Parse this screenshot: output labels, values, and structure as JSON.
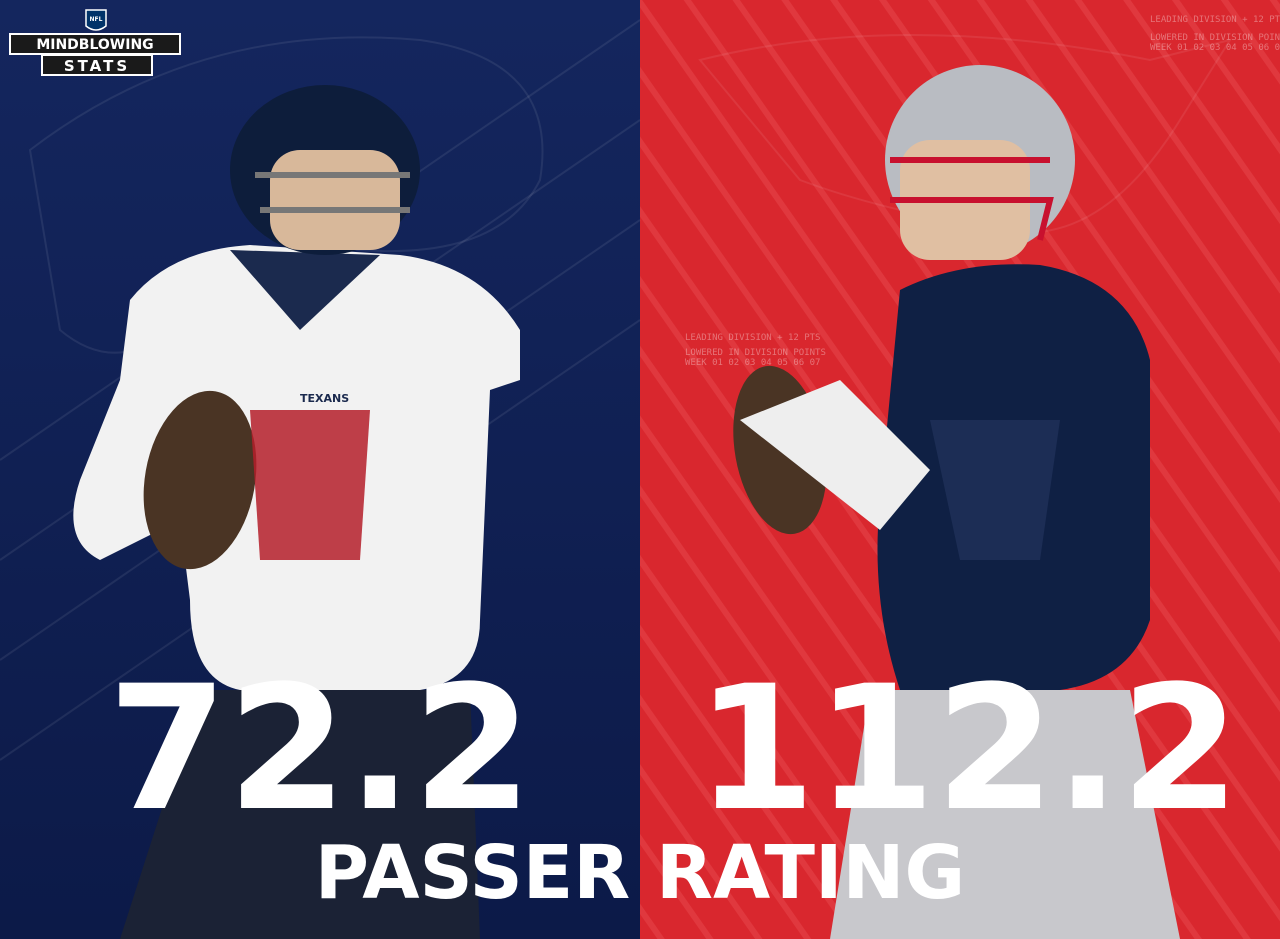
{
  "header": {
    "league": "NFL",
    "brand_top": "MINDBLOWING",
    "brand_bottom": "STATS"
  },
  "background_notes": [
    "LEADING DIVISION + 12 PTS",
    "LOWERED IN DIVISION POINTS",
    "WEEK 01 02 03 04 05 06 07"
  ],
  "stats": [
    {
      "team": "TEXANS",
      "value": 72.2
    },
    {
      "value": 112.2
    }
  ],
  "stat_label": "PASSER RATING"
}
